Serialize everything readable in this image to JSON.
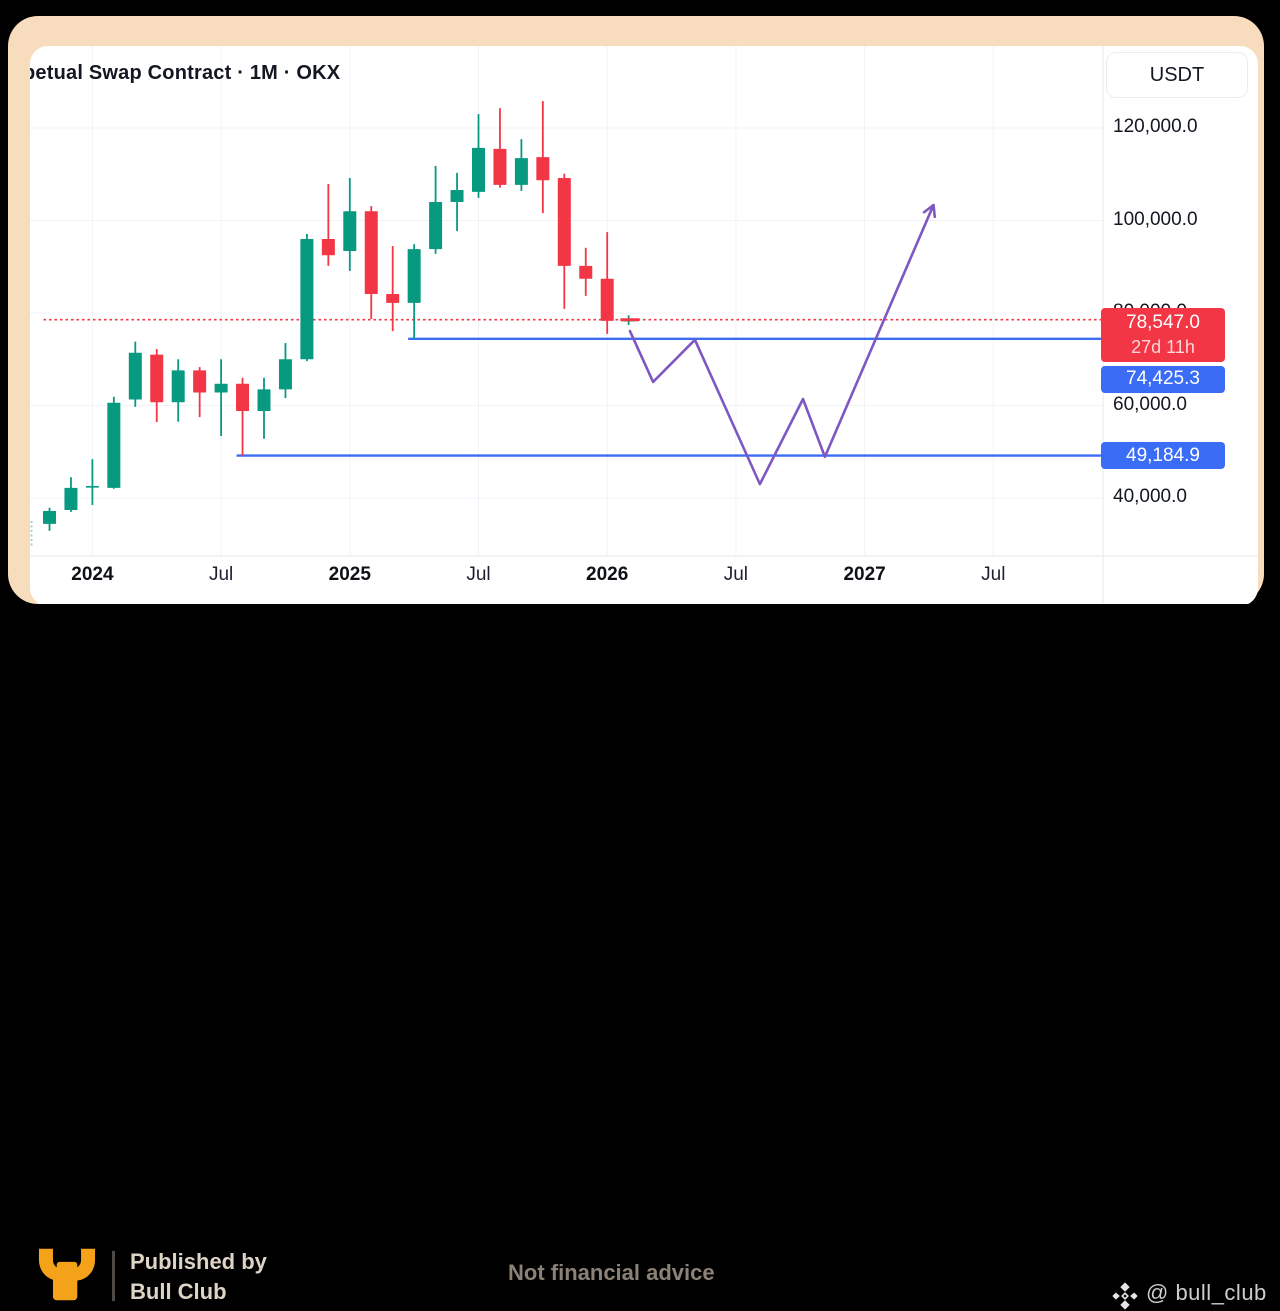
{
  "header": {
    "title": "petual Swap Contract · 1M · OKX",
    "currency_button": "USDT"
  },
  "chart_data": {
    "type": "candlestick",
    "timeframe": "1M",
    "exchange": "OKX",
    "quote_currency": "USDT",
    "y_axis": {
      "ticks": [
        120000,
        100000,
        80000,
        60000,
        40000
      ],
      "tick_labels": [
        "120,000.0",
        "100,000.0",
        "80,000.0",
        "60,000.0",
        "40,000.0"
      ],
      "grid": true
    },
    "x_axis": {
      "tick_labels": [
        {
          "label": "2024",
          "month_index": 2,
          "bold": true
        },
        {
          "label": "Jul",
          "month_index": 8,
          "bold": false
        },
        {
          "label": "2025",
          "month_index": 14,
          "bold": true
        },
        {
          "label": "Jul",
          "month_index": 20,
          "bold": false
        },
        {
          "label": "2026",
          "month_index": 26,
          "bold": true
        },
        {
          "label": "Jul",
          "month_index": 32,
          "bold": false
        },
        {
          "label": "2027",
          "month_index": 38,
          "bold": true
        },
        {
          "label": "Jul",
          "month_index": 44,
          "bold": false
        }
      ],
      "grid": true
    },
    "candles_columns": [
      "month",
      "open",
      "high",
      "low",
      "close"
    ],
    "candles": [
      [
        "2023-11",
        34400,
        37900,
        32900,
        37200
      ],
      [
        "2023-12",
        37400,
        44500,
        37000,
        42200
      ],
      [
        "2024-01",
        42300,
        48400,
        38500,
        42600
      ],
      [
        "2024-02",
        42200,
        61900,
        42000,
        60600
      ],
      [
        "2024-03",
        61300,
        73800,
        59700,
        71400
      ],
      [
        "2024-04",
        71000,
        72200,
        56400,
        60700
      ],
      [
        "2024-05",
        60700,
        70000,
        56500,
        67600
      ],
      [
        "2024-06",
        67600,
        68300,
        57500,
        62800
      ],
      [
        "2024-07",
        62800,
        70000,
        53400,
        64700
      ],
      [
        "2024-08",
        64700,
        66000,
        49100,
        58800
      ],
      [
        "2024-09",
        58800,
        66000,
        52800,
        63500
      ],
      [
        "2024-10",
        63500,
        73500,
        61600,
        70000
      ],
      [
        "2024-11",
        70000,
        97100,
        69600,
        96000
      ],
      [
        "2024-12",
        96000,
        107900,
        90200,
        92500
      ],
      [
        "2025-01",
        93400,
        109200,
        89100,
        102000
      ],
      [
        "2025-02",
        102000,
        103100,
        78700,
        84100
      ],
      [
        "2025-03",
        84100,
        94500,
        76100,
        82200
      ],
      [
        "2025-04",
        82200,
        94900,
        74400,
        93800
      ],
      [
        "2025-05",
        93800,
        111800,
        92800,
        104000
      ],
      [
        "2025-06",
        104000,
        110300,
        97700,
        106600
      ],
      [
        "2025-07",
        106200,
        123000,
        104900,
        115700
      ],
      [
        "2025-08",
        115500,
        124300,
        107100,
        107700
      ],
      [
        "2025-09",
        107700,
        117600,
        106400,
        113500
      ],
      [
        "2025-10",
        113700,
        125800,
        101600,
        108700
      ],
      [
        "2025-11",
        109200,
        110100,
        80900,
        90200
      ],
      [
        "2025-12",
        90200,
        94100,
        83700,
        87400
      ],
      [
        "2026-01",
        87400,
        97500,
        75500,
        78300
      ],
      [
        "2026-02",
        78400,
        79500,
        77400,
        78547
      ]
    ],
    "colors": {
      "up": "#089981",
      "down": "#f23645",
      "grid": "#f0f3f8",
      "axis_line": "#e4e7ee"
    },
    "horizontal_lines": [
      {
        "price": 78547.0,
        "style": "dotted",
        "color": "#f23645",
        "from_month": 0
      },
      {
        "price": 74425.3,
        "style": "solid",
        "color": "#3b6cf6",
        "from_month": 17
      },
      {
        "price": 49184.9,
        "style": "solid",
        "color": "#3b6cf6",
        "from_month": 9
      }
    ],
    "projection": {
      "color": "#7e57c2",
      "points_columns": [
        "month_index",
        "price"
      ],
      "points": [
        [
          27.06,
          76100
        ],
        [
          28.14,
          65100
        ],
        [
          30.09,
          74200
        ],
        [
          33.12,
          43000
        ],
        [
          35.13,
          61400
        ],
        [
          36.15,
          48900
        ],
        [
          41.19,
          103100
        ]
      ],
      "arrow_end": true
    },
    "current_price_marker": {
      "month_index": 27.06,
      "price": 78547.0
    }
  },
  "price_labels": {
    "current": {
      "price": "78,547.0",
      "countdown": "27d 11h",
      "value": 78547.0,
      "color": "#f23645"
    },
    "level_1": {
      "price": "74,425.3",
      "value": 74425.3,
      "color": "#3b6cf6"
    },
    "level_2": {
      "price": "49,184.9",
      "value": 49184.9,
      "color": "#3b6cf6"
    }
  },
  "footer": {
    "published_by": "Published by",
    "brand": "Bull Club",
    "disclaimer": "Not financial advice",
    "handle": "@ bull_club"
  }
}
